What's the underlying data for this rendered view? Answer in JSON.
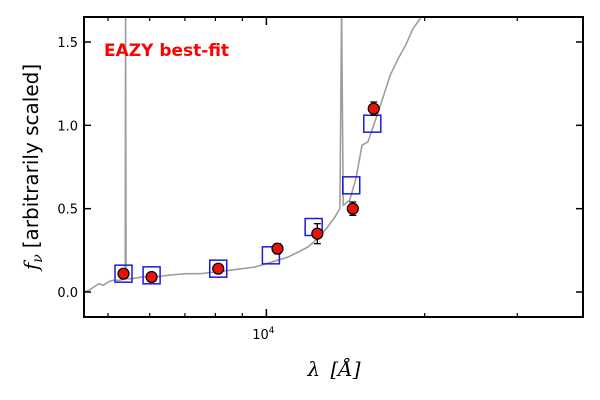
{
  "chart_data": {
    "type": "scatter",
    "title": "",
    "annotation": "EAZY best-fit",
    "xlabel_symbol": "λ",
    "xlabel_unit": "[Å]",
    "ylabel_symbol": "f",
    "ylabel_subscript": "ν",
    "ylabel_text": "[arbitrarily scaled]",
    "xscale": "log",
    "xlim": [
      4500,
      40000
    ],
    "ylim": [
      -0.15,
      1.65
    ],
    "yticks": [
      0.0,
      0.5,
      1.0,
      1.5
    ],
    "ytick_labels": [
      "0.0",
      "0.5",
      "1.0",
      "1.5"
    ],
    "xtick_major": [
      10000
    ],
    "xtick_major_labels": [
      "10",
      "4"
    ],
    "xtick_minor": [
      5000,
      6000,
      7000,
      8000,
      9000,
      20000,
      30000,
      40000
    ],
    "colors": {
      "observed_fill": "#e8120c",
      "observed_edge": "#000000",
      "model_edge": "#1a1ae6",
      "sed_line": "#9e9e9e",
      "annotation": "#ff0000"
    },
    "series": [
      {
        "name": "Observed photometry",
        "marker": "circle",
        "points": [
          {
            "x": 5350,
            "y": 0.11,
            "yerr": 0.02
          },
          {
            "x": 6050,
            "y": 0.09,
            "yerr": 0.02
          },
          {
            "x": 8100,
            "y": 0.14,
            "yerr": 0.02
          },
          {
            "x": 10500,
            "y": 0.26,
            "yerr": 0.03
          },
          {
            "x": 12500,
            "y": 0.35,
            "yerr": 0.06
          },
          {
            "x": 14600,
            "y": 0.5,
            "yerr": 0.04
          },
          {
            "x": 16000,
            "y": 1.1,
            "yerr": 0.04
          }
        ]
      },
      {
        "name": "Model photometry",
        "marker": "square",
        "points": [
          {
            "x": 5350,
            "y": 0.11
          },
          {
            "x": 6050,
            "y": 0.1
          },
          {
            "x": 8100,
            "y": 0.14
          },
          {
            "x": 10200,
            "y": 0.22
          },
          {
            "x": 12300,
            "y": 0.39
          },
          {
            "x": 14500,
            "y": 0.64
          },
          {
            "x": 15900,
            "y": 1.01
          }
        ]
      },
      {
        "name": "EAZY best-fit SED",
        "marker": "line",
        "points": [
          {
            "x": 4500,
            "y": 0.0
          },
          {
            "x": 4600,
            "y": 0.01
          },
          {
            "x": 4700,
            "y": 0.03
          },
          {
            "x": 4800,
            "y": 0.05
          },
          {
            "x": 4900,
            "y": 0.04
          },
          {
            "x": 5000,
            "y": 0.06
          },
          {
            "x": 5100,
            "y": 0.07
          },
          {
            "x": 5250,
            "y": 0.07
          },
          {
            "x": 5390,
            "y": 0.08
          },
          {
            "x": 5400,
            "y": 1.7
          },
          {
            "x": 5410,
            "y": 0.08
          },
          {
            "x": 5550,
            "y": 0.08
          },
          {
            "x": 5800,
            "y": 0.09
          },
          {
            "x": 6100,
            "y": 0.09
          },
          {
            "x": 6500,
            "y": 0.1
          },
          {
            "x": 7000,
            "y": 0.11
          },
          {
            "x": 7500,
            "y": 0.11
          },
          {
            "x": 8000,
            "y": 0.12
          },
          {
            "x": 8500,
            "y": 0.13
          },
          {
            "x": 9000,
            "y": 0.14
          },
          {
            "x": 9500,
            "y": 0.15
          },
          {
            "x": 10000,
            "y": 0.17
          },
          {
            "x": 10500,
            "y": 0.19
          },
          {
            "x": 11000,
            "y": 0.21
          },
          {
            "x": 11500,
            "y": 0.24
          },
          {
            "x": 12000,
            "y": 0.27
          },
          {
            "x": 12500,
            "y": 0.32
          },
          {
            "x": 13000,
            "y": 0.38
          },
          {
            "x": 13500,
            "y": 0.45
          },
          {
            "x": 13800,
            "y": 0.5
          },
          {
            "x": 13900,
            "y": 1.7
          },
          {
            "x": 14000,
            "y": 0.52
          },
          {
            "x": 14400,
            "y": 0.55
          },
          {
            "x": 14800,
            "y": 0.68
          },
          {
            "x": 15200,
            "y": 0.88
          },
          {
            "x": 15600,
            "y": 0.9
          },
          {
            "x": 16000,
            "y": 1.0
          },
          {
            "x": 16600,
            "y": 1.15
          },
          {
            "x": 17200,
            "y": 1.3
          },
          {
            "x": 17800,
            "y": 1.4
          },
          {
            "x": 18400,
            "y": 1.48
          },
          {
            "x": 19000,
            "y": 1.58
          },
          {
            "x": 19600,
            "y": 1.64
          },
          {
            "x": 20000,
            "y": 1.7
          }
        ]
      }
    ]
  }
}
